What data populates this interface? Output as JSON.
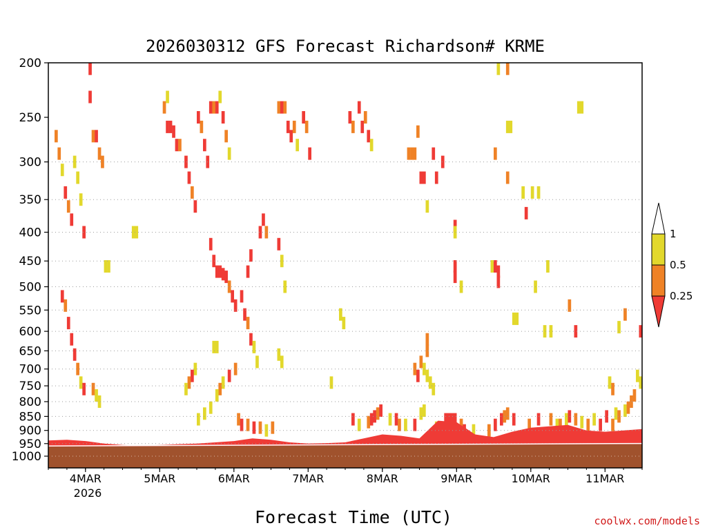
{
  "chart_data": {
    "type": "heatmap",
    "title": "2026030312 GFS Forecast Richardson# KRME",
    "xlabel": "Forecast Time (UTC)",
    "ylabel": "",
    "credit": "coolwx.com/models",
    "y_axis": {
      "scale": "log-pressure",
      "inverted": true,
      "range": [
        1000,
        200
      ],
      "ticks": [
        200,
        250,
        300,
        350,
        400,
        450,
        500,
        550,
        600,
        650,
        700,
        750,
        800,
        850,
        900,
        950,
        1000
      ],
      "dotted_grid_levels": [
        300,
        350,
        400,
        450,
        500,
        550,
        600,
        650,
        700,
        750,
        800,
        850,
        900,
        950,
        1000
      ]
    },
    "x_axis": {
      "range_hours": [
        0,
        192
      ],
      "ticks": [
        {
          "hour": 12,
          "label": "4MAR"
        },
        {
          "hour": 36,
          "label": "5MAR"
        },
        {
          "hour": 60,
          "label": "6MAR"
        },
        {
          "hour": 84,
          "label": "7MAR"
        },
        {
          "hour": 108,
          "label": "8MAR"
        },
        {
          "hour": 132,
          "label": "9MAR"
        },
        {
          "hour": 156,
          "label": "10MAR"
        },
        {
          "hour": 180,
          "label": "11MAR"
        }
      ],
      "year_label": "2026",
      "year_under_hour": 12
    },
    "legend": {
      "placement": "right",
      "labels": [
        "1",
        "0.5",
        "0.25"
      ],
      "classes": [
        {
          "range": "<0.25",
          "color": "#ef3b36"
        },
        {
          "range": "0.25-0.5",
          "color": "#ef8226"
        },
        {
          "range": "0.5-1",
          "color": "#e2d82c"
        },
        {
          "range": ">1",
          "color": "#ffffff"
        }
      ]
    },
    "colors": {
      "low": "#ef3b36",
      "mid": "#ef8226",
      "high": "#e2d82c",
      "ground": "#a0522d"
    },
    "ground": {
      "description_free": true,
      "top_pressure_start": 962,
      "top_pressure_end": 952
    },
    "boundary_layer": [
      {
        "h": 0,
        "top": 938
      },
      {
        "h": 6,
        "top": 935
      },
      {
        "h": 12,
        "top": 940
      },
      {
        "h": 18,
        "top": 950
      },
      {
        "h": 24,
        "top": 955
      },
      {
        "h": 30,
        "top": 958
      },
      {
        "h": 36,
        "top": 955
      },
      {
        "h": 42,
        "top": 952
      },
      {
        "h": 48,
        "top": 950
      },
      {
        "h": 54,
        "top": 945
      },
      {
        "h": 60,
        "top": 940
      },
      {
        "h": 66,
        "top": 930
      },
      {
        "h": 72,
        "top": 935
      },
      {
        "h": 78,
        "top": 945
      },
      {
        "h": 84,
        "top": 950
      },
      {
        "h": 90,
        "top": 948
      },
      {
        "h": 96,
        "top": 945
      },
      {
        "h": 102,
        "top": 930
      },
      {
        "h": 108,
        "top": 915
      },
      {
        "h": 114,
        "top": 920
      },
      {
        "h": 120,
        "top": 930
      },
      {
        "h": 126,
        "top": 865
      },
      {
        "h": 132,
        "top": 870
      },
      {
        "h": 138,
        "top": 915
      },
      {
        "h": 144,
        "top": 925
      },
      {
        "h": 150,
        "top": 905
      },
      {
        "h": 156,
        "top": 890
      },
      {
        "h": 162,
        "top": 885
      },
      {
        "h": 168,
        "top": 880
      },
      {
        "h": 174,
        "top": 900
      },
      {
        "h": 180,
        "top": 905
      },
      {
        "h": 186,
        "top": 900
      },
      {
        "h": 192,
        "top": 895
      }
    ],
    "cells": [
      {
        "h": 54,
        "p": 470,
        "c": "low"
      },
      {
        "h": 55,
        "p": 470,
        "c": "low"
      },
      {
        "h": 56,
        "p": 475,
        "c": "low"
      },
      {
        "h": 57,
        "p": 480,
        "c": "low"
      },
      {
        "h": 53,
        "p": 450,
        "c": "low"
      },
      {
        "h": 52,
        "p": 420,
        "c": "low"
      },
      {
        "h": 58,
        "p": 500,
        "c": "mid"
      },
      {
        "h": 59,
        "p": 520,
        "c": "low"
      },
      {
        "h": 60,
        "p": 540,
        "c": "low"
      },
      {
        "h": 38,
        "p": 260,
        "c": "low"
      },
      {
        "h": 39,
        "p": 260,
        "c": "low"
      },
      {
        "h": 40,
        "p": 265,
        "c": "low"
      },
      {
        "h": 37,
        "p": 240,
        "c": "mid"
      },
      {
        "h": 38,
        "p": 230,
        "c": "high"
      },
      {
        "h": 41,
        "p": 280,
        "c": "low"
      },
      {
        "h": 42,
        "p": 280,
        "c": "mid"
      },
      {
        "h": 44,
        "p": 300,
        "c": "low"
      },
      {
        "h": 45,
        "p": 320,
        "c": "low"
      },
      {
        "h": 46,
        "p": 340,
        "c": "mid"
      },
      {
        "h": 47,
        "p": 360,
        "c": "low"
      },
      {
        "h": 48,
        "p": 250,
        "c": "low"
      },
      {
        "h": 49,
        "p": 260,
        "c": "mid"
      },
      {
        "h": 50,
        "p": 280,
        "c": "low"
      },
      {
        "h": 51,
        "p": 300,
        "c": "low"
      },
      {
        "h": 52,
        "p": 240,
        "c": "low"
      },
      {
        "h": 53,
        "p": 240,
        "c": "mid"
      },
      {
        "h": 54,
        "p": 240,
        "c": "low"
      },
      {
        "h": 55,
        "p": 230,
        "c": "high"
      },
      {
        "h": 56,
        "p": 250,
        "c": "low"
      },
      {
        "h": 57,
        "p": 270,
        "c": "mid"
      },
      {
        "h": 58,
        "p": 290,
        "c": "high"
      },
      {
        "h": 74,
        "p": 240,
        "c": "mid"
      },
      {
        "h": 75,
        "p": 240,
        "c": "low"
      },
      {
        "h": 76,
        "p": 240,
        "c": "mid"
      },
      {
        "h": 77,
        "p": 260,
        "c": "low"
      },
      {
        "h": 78,
        "p": 270,
        "c": "low"
      },
      {
        "h": 79,
        "p": 260,
        "c": "mid"
      },
      {
        "h": 80,
        "p": 280,
        "c": "high"
      },
      {
        "h": 82,
        "p": 250,
        "c": "low"
      },
      {
        "h": 83,
        "p": 260,
        "c": "mid"
      },
      {
        "h": 84,
        "p": 290,
        "c": "low"
      },
      {
        "h": 97,
        "p": 250,
        "c": "low"
      },
      {
        "h": 98,
        "p": 260,
        "c": "mid"
      },
      {
        "h": 100,
        "p": 240,
        "c": "low"
      },
      {
        "h": 101,
        "p": 260,
        "c": "low"
      },
      {
        "h": 102,
        "p": 250,
        "c": "mid"
      },
      {
        "h": 103,
        "p": 270,
        "c": "low"
      },
      {
        "h": 104,
        "p": 280,
        "c": "high"
      },
      {
        "h": 116,
        "p": 290,
        "c": "mid"
      },
      {
        "h": 117,
        "p": 290,
        "c": "mid"
      },
      {
        "h": 118,
        "p": 290,
        "c": "mid"
      },
      {
        "h": 119,
        "p": 265,
        "c": "mid"
      },
      {
        "h": 120,
        "p": 320,
        "c": "low"
      },
      {
        "h": 121,
        "p": 320,
        "c": "low"
      },
      {
        "h": 124,
        "p": 290,
        "c": "low"
      },
      {
        "h": 125,
        "p": 320,
        "c": "low"
      },
      {
        "h": 127,
        "p": 300,
        "c": "low"
      },
      {
        "h": 131,
        "p": 390,
        "c": "low"
      },
      {
        "h": 131,
        "p": 400,
        "c": "high"
      },
      {
        "h": 122,
        "p": 360,
        "c": "high"
      },
      {
        "h": 145,
        "p": 205,
        "c": "high"
      },
      {
        "h": 148,
        "p": 205,
        "c": "mid"
      },
      {
        "h": 171,
        "p": 240,
        "c": "high"
      },
      {
        "h": 172,
        "p": 240,
        "c": "high"
      },
      {
        "h": 148,
        "p": 260,
        "c": "high"
      },
      {
        "h": 149,
        "p": 260,
        "c": "high"
      },
      {
        "h": 144,
        "p": 290,
        "c": "mid"
      },
      {
        "h": 148,
        "p": 320,
        "c": "mid"
      },
      {
        "h": 153,
        "p": 340,
        "c": "high"
      },
      {
        "h": 154,
        "p": 370,
        "c": "low"
      },
      {
        "h": 156,
        "p": 340,
        "c": "high"
      },
      {
        "h": 158,
        "p": 340,
        "c": "high"
      },
      {
        "h": 143,
        "p": 460,
        "c": "high"
      },
      {
        "h": 144,
        "p": 460,
        "c": "low"
      },
      {
        "h": 145,
        "p": 470,
        "c": "low"
      },
      {
        "h": 145,
        "p": 490,
        "c": "low"
      },
      {
        "h": 131,
        "p": 460,
        "c": "low"
      },
      {
        "h": 131,
        "p": 480,
        "c": "low"
      },
      {
        "h": 133,
        "p": 500,
        "c": "high"
      },
      {
        "h": 150,
        "p": 570,
        "c": "high"
      },
      {
        "h": 151,
        "p": 570,
        "c": "high"
      },
      {
        "h": 157,
        "p": 500,
        "c": "high"
      },
      {
        "h": 161,
        "p": 460,
        "c": "high"
      },
      {
        "h": 160,
        "p": 600,
        "c": "high"
      },
      {
        "h": 162,
        "p": 600,
        "c": "high"
      },
      {
        "h": 168,
        "p": 540,
        "c": "mid"
      },
      {
        "h": 170,
        "p": 600,
        "c": "low"
      },
      {
        "h": 122,
        "p": 620,
        "c": "mid"
      },
      {
        "h": 122,
        "p": 650,
        "c": "mid"
      },
      {
        "h": 120,
        "p": 680,
        "c": "mid"
      },
      {
        "h": 121,
        "p": 700,
        "c": "high"
      },
      {
        "h": 122,
        "p": 720,
        "c": "high"
      },
      {
        "h": 123,
        "p": 740,
        "c": "high"
      },
      {
        "h": 124,
        "p": 760,
        "c": "high"
      },
      {
        "h": 119,
        "p": 720,
        "c": "low"
      },
      {
        "h": 118,
        "p": 700,
        "c": "mid"
      },
      {
        "h": 2,
        "p": 270,
        "c": "mid"
      },
      {
        "h": 3,
        "p": 290,
        "c": "mid"
      },
      {
        "h": 4,
        "p": 310,
        "c": "high"
      },
      {
        "h": 5,
        "p": 340,
        "c": "low"
      },
      {
        "h": 6,
        "p": 360,
        "c": "mid"
      },
      {
        "h": 7,
        "p": 380,
        "c": "low"
      },
      {
        "h": 8,
        "p": 300,
        "c": "high"
      },
      {
        "h": 9,
        "p": 320,
        "c": "high"
      },
      {
        "h": 10,
        "p": 350,
        "c": "high"
      },
      {
        "h": 11,
        "p": 400,
        "c": "low"
      },
      {
        "h": 4,
        "p": 520,
        "c": "low"
      },
      {
        "h": 5,
        "p": 540,
        "c": "mid"
      },
      {
        "h": 6,
        "p": 580,
        "c": "low"
      },
      {
        "h": 7,
        "p": 620,
        "c": "low"
      },
      {
        "h": 8,
        "p": 660,
        "c": "low"
      },
      {
        "h": 9,
        "p": 700,
        "c": "mid"
      },
      {
        "h": 10,
        "p": 740,
        "c": "high"
      },
      {
        "h": 11,
        "p": 760,
        "c": "low"
      },
      {
        "h": 14,
        "p": 760,
        "c": "mid"
      },
      {
        "h": 15,
        "p": 780,
        "c": "high"
      },
      {
        "h": 16,
        "p": 800,
        "c": "high"
      },
      {
        "h": 18,
        "p": 460,
        "c": "high"
      },
      {
        "h": 19,
        "p": 460,
        "c": "high"
      },
      {
        "h": 27,
        "p": 400,
        "c": "high"
      },
      {
        "h": 28,
        "p": 400,
        "c": "high"
      },
      {
        "h": 14,
        "p": 270,
        "c": "mid"
      },
      {
        "h": 15,
        "p": 270,
        "c": "low"
      },
      {
        "h": 16,
        "p": 290,
        "c": "mid"
      },
      {
        "h": 17,
        "p": 300,
        "c": "mid"
      },
      {
        "h": 13,
        "p": 230,
        "c": "low"
      },
      {
        "h": 13,
        "p": 205,
        "c": "low"
      },
      {
        "h": 74,
        "p": 420,
        "c": "low"
      },
      {
        "h": 75,
        "p": 450,
        "c": "high"
      },
      {
        "h": 76,
        "p": 500,
        "c": "high"
      },
      {
        "h": 68,
        "p": 400,
        "c": "low"
      },
      {
        "h": 69,
        "p": 380,
        "c": "low"
      },
      {
        "h": 70,
        "p": 400,
        "c": "mid"
      },
      {
        "h": 65,
        "p": 440,
        "c": "low"
      },
      {
        "h": 64,
        "p": 470,
        "c": "low"
      },
      {
        "h": 62,
        "p": 520,
        "c": "low"
      },
      {
        "h": 63,
        "p": 560,
        "c": "low"
      },
      {
        "h": 64,
        "p": 580,
        "c": "mid"
      },
      {
        "h": 65,
        "p": 620,
        "c": "low"
      },
      {
        "h": 66,
        "p": 640,
        "c": "high"
      },
      {
        "h": 67,
        "p": 680,
        "c": "high"
      },
      {
        "h": 60,
        "p": 700,
        "c": "mid"
      },
      {
        "h": 58,
        "p": 720,
        "c": "low"
      },
      {
        "h": 56,
        "p": 740,
        "c": "high"
      },
      {
        "h": 55,
        "p": 760,
        "c": "mid"
      },
      {
        "h": 54,
        "p": 780,
        "c": "high"
      },
      {
        "h": 52,
        "p": 820,
        "c": "high"
      },
      {
        "h": 50,
        "p": 840,
        "c": "high"
      },
      {
        "h": 48,
        "p": 860,
        "c": "high"
      },
      {
        "h": 47,
        "p": 700,
        "c": "high"
      },
      {
        "h": 46,
        "p": 720,
        "c": "low"
      },
      {
        "h": 45,
        "p": 740,
        "c": "mid"
      },
      {
        "h": 44,
        "p": 760,
        "c": "high"
      },
      {
        "h": 53,
        "p": 640,
        "c": "high"
      },
      {
        "h": 54,
        "p": 640,
        "c": "high"
      },
      {
        "h": 61,
        "p": 860,
        "c": "mid"
      },
      {
        "h": 62,
        "p": 880,
        "c": "low"
      },
      {
        "h": 64,
        "p": 880,
        "c": "mid"
      },
      {
        "h": 66,
        "p": 890,
        "c": "low"
      },
      {
        "h": 68,
        "p": 890,
        "c": "mid"
      },
      {
        "h": 70,
        "p": 900,
        "c": "high"
      },
      {
        "h": 72,
        "p": 890,
        "c": "mid"
      },
      {
        "h": 74,
        "p": 660,
        "c": "high"
      },
      {
        "h": 75,
        "p": 680,
        "c": "high"
      },
      {
        "h": 94,
        "p": 560,
        "c": "high"
      },
      {
        "h": 95,
        "p": 580,
        "c": "high"
      },
      {
        "h": 91,
        "p": 740,
        "c": "high"
      },
      {
        "h": 98,
        "p": 860,
        "c": "low"
      },
      {
        "h": 100,
        "p": 880,
        "c": "high"
      },
      {
        "h": 103,
        "p": 870,
        "c": "mid"
      },
      {
        "h": 104,
        "p": 860,
        "c": "low"
      },
      {
        "h": 105,
        "p": 850,
        "c": "low"
      },
      {
        "h": 106,
        "p": 840,
        "c": "mid"
      },
      {
        "h": 107,
        "p": 830,
        "c": "low"
      },
      {
        "h": 110,
        "p": 860,
        "c": "high"
      },
      {
        "h": 112,
        "p": 860,
        "c": "low"
      },
      {
        "h": 113,
        "p": 880,
        "c": "mid"
      },
      {
        "h": 115,
        "p": 880,
        "c": "high"
      },
      {
        "h": 118,
        "p": 880,
        "c": "low"
      },
      {
        "h": 120,
        "p": 840,
        "c": "high"
      },
      {
        "h": 121,
        "p": 830,
        "c": "high"
      },
      {
        "h": 125,
        "p": 890,
        "c": "high"
      },
      {
        "h": 128,
        "p": 860,
        "c": "low"
      },
      {
        "h": 129,
        "p": 860,
        "c": "low"
      },
      {
        "h": 130,
        "p": 860,
        "c": "low"
      },
      {
        "h": 131,
        "p": 860,
        "c": "low"
      },
      {
        "h": 133,
        "p": 880,
        "c": "mid"
      },
      {
        "h": 134,
        "p": 900,
        "c": "low"
      },
      {
        "h": 137,
        "p": 900,
        "c": "high"
      },
      {
        "h": 142,
        "p": 900,
        "c": "mid"
      },
      {
        "h": 144,
        "p": 880,
        "c": "low"
      },
      {
        "h": 146,
        "p": 860,
        "c": "low"
      },
      {
        "h": 147,
        "p": 850,
        "c": "mid"
      },
      {
        "h": 148,
        "p": 840,
        "c": "mid"
      },
      {
        "h": 150,
        "p": 860,
        "c": "low"
      },
      {
        "h": 155,
        "p": 880,
        "c": "mid"
      },
      {
        "h": 158,
        "p": 860,
        "c": "low"
      },
      {
        "h": 162,
        "p": 860,
        "c": "mid"
      },
      {
        "h": 164,
        "p": 880,
        "c": "high"
      },
      {
        "h": 165,
        "p": 880,
        "c": "mid"
      },
      {
        "h": 167,
        "p": 860,
        "c": "high"
      },
      {
        "h": 168,
        "p": 850,
        "c": "low"
      },
      {
        "h": 170,
        "p": 860,
        "c": "mid"
      },
      {
        "h": 172,
        "p": 870,
        "c": "high"
      },
      {
        "h": 174,
        "p": 880,
        "c": "mid"
      },
      {
        "h": 176,
        "p": 860,
        "c": "high"
      },
      {
        "h": 178,
        "p": 880,
        "c": "low"
      },
      {
        "h": 180,
        "p": 850,
        "c": "low"
      },
      {
        "h": 182,
        "p": 880,
        "c": "mid"
      },
      {
        "h": 183,
        "p": 840,
        "c": "high"
      },
      {
        "h": 184,
        "p": 850,
        "c": "mid"
      },
      {
        "h": 186,
        "p": 830,
        "c": "high"
      },
      {
        "h": 187,
        "p": 820,
        "c": "mid"
      },
      {
        "h": 188,
        "p": 800,
        "c": "mid"
      },
      {
        "h": 189,
        "p": 780,
        "c": "mid"
      },
      {
        "h": 190,
        "p": 720,
        "c": "high"
      },
      {
        "h": 191,
        "p": 740,
        "c": "high"
      },
      {
        "h": 191,
        "p": 600,
        "c": "low"
      },
      {
        "h": 186,
        "p": 560,
        "c": "mid"
      },
      {
        "h": 184,
        "p": 590,
        "c": "high"
      },
      {
        "h": 181,
        "p": 740,
        "c": "high"
      },
      {
        "h": 182,
        "p": 760,
        "c": "mid"
      }
    ]
  }
}
